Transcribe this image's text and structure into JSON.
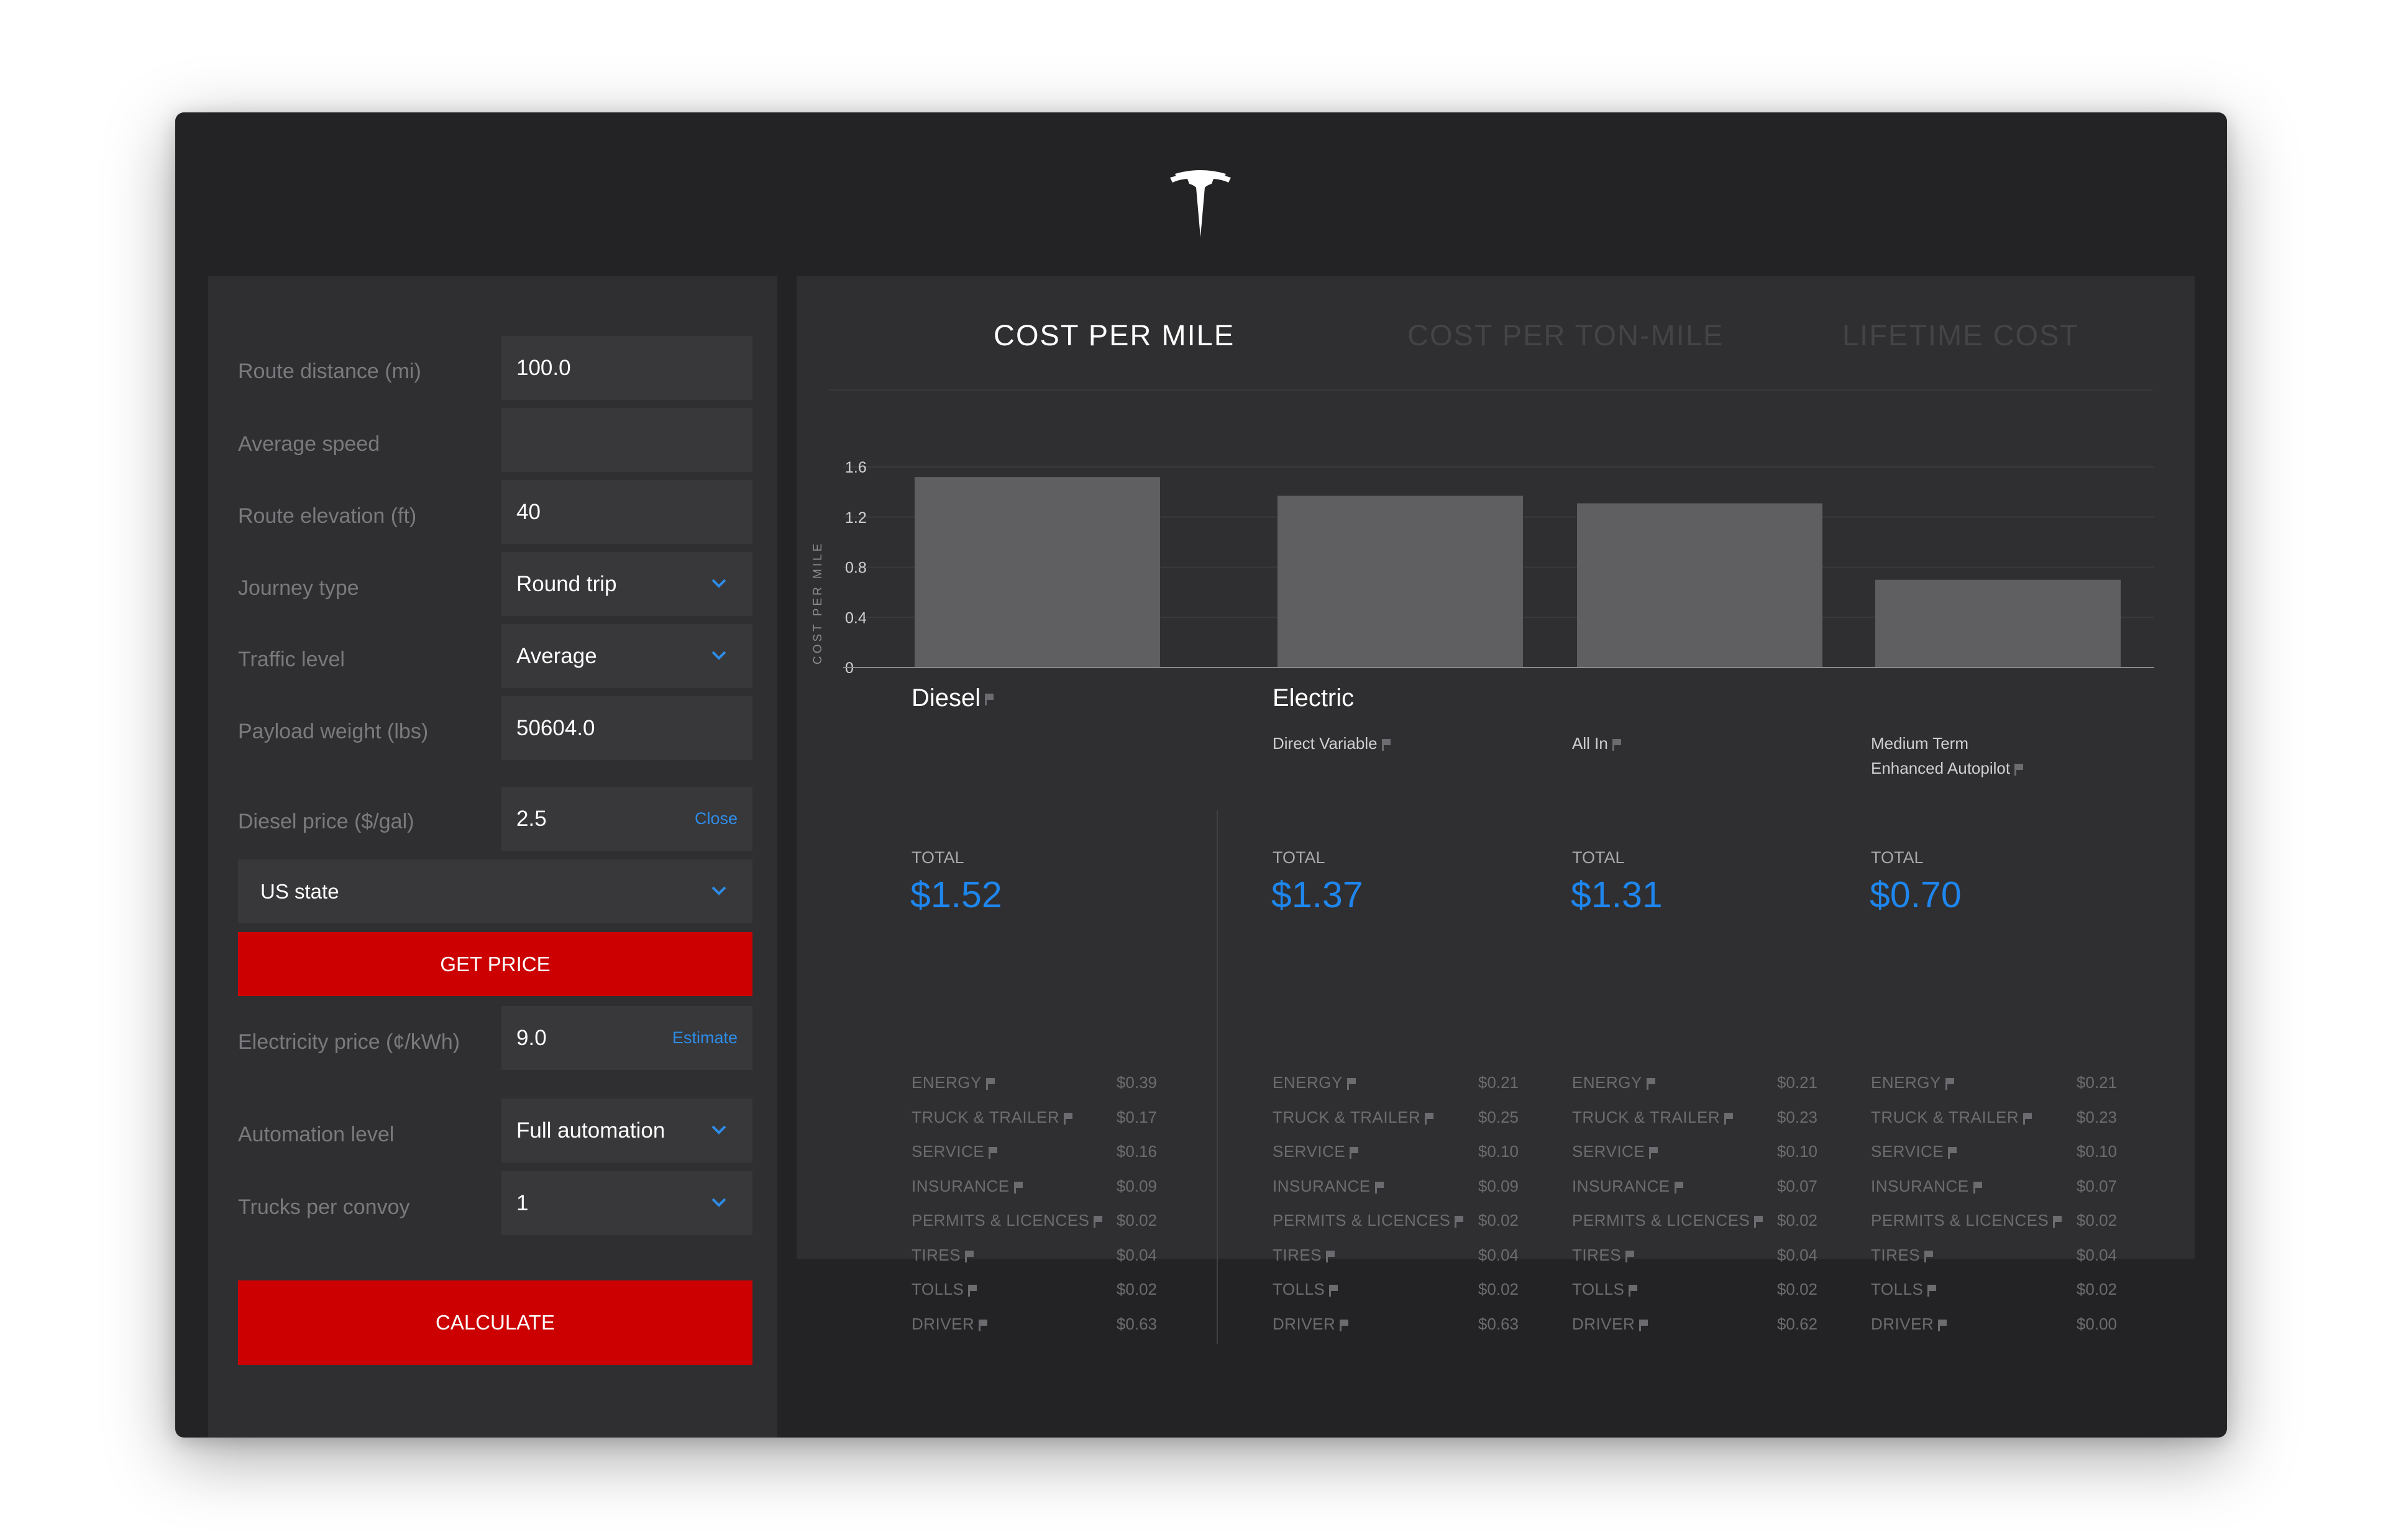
{
  "form": {
    "rows": [
      {
        "label": "Route distance (mi)",
        "value": "100.0",
        "type": "input"
      },
      {
        "label": "Average speed",
        "value": "",
        "type": "input"
      },
      {
        "label": "Route elevation (ft)",
        "value": "40",
        "type": "input"
      },
      {
        "label": "Journey type",
        "value": "Round trip",
        "type": "select"
      },
      {
        "label": "Traffic level",
        "value": "Average",
        "type": "select"
      },
      {
        "label": "Payload weight (lbs)",
        "value": "50604.0",
        "type": "input"
      }
    ],
    "diesel": {
      "label": "Diesel price ($/gal)",
      "value": "2.5",
      "link": "Close"
    },
    "us_state": "US state",
    "get_price": "GET PRICE",
    "electricity": {
      "label": "Electricity price (¢/kWh)",
      "value": "9.0",
      "link": "Estimate"
    },
    "automation": {
      "label": "Automation level",
      "value": "Full automation"
    },
    "convoy": {
      "label": "Trucks per convoy",
      "value": "1"
    },
    "calculate": "CALCULATE"
  },
  "tabs": [
    "COST PER MILE",
    "COST PER TON-MILE",
    "LIFETIME COST"
  ],
  "chart_data": {
    "type": "bar",
    "ylabel": "COST PER MILE",
    "y_ticks": [
      "0",
      "0.4",
      "0.8",
      "1.2",
      "1.6"
    ],
    "ylim": [
      0,
      1.6
    ],
    "categories": [
      "",
      "",
      "",
      ""
    ],
    "values": [
      1.52,
      1.37,
      1.31,
      0.7
    ],
    "grid": true,
    "colors": {
      "bar": "#5f5f62",
      "grid": "#3a3a3d",
      "axis": "#8a8a8e"
    }
  },
  "results": {
    "diesel_title": "Diesel",
    "electric_title": "Electric",
    "total_label": "TOTAL",
    "columns": [
      {
        "sub": [],
        "total": "$1.52",
        "items": [
          [
            "ENERGY",
            "$0.39"
          ],
          [
            "TRUCK & TRAILER",
            "$0.17"
          ],
          [
            "SERVICE",
            "$0.16"
          ],
          [
            "INSURANCE",
            "$0.09"
          ],
          [
            "PERMITS & LICENCES",
            "$0.02"
          ],
          [
            "TIRES",
            "$0.04"
          ],
          [
            "TOLLS",
            "$0.02"
          ],
          [
            "DRIVER",
            "$0.63"
          ]
        ]
      },
      {
        "sub": [
          "Direct Variable"
        ],
        "total": "$1.37",
        "items": [
          [
            "ENERGY",
            "$0.21"
          ],
          [
            "TRUCK & TRAILER",
            "$0.25"
          ],
          [
            "SERVICE",
            "$0.10"
          ],
          [
            "INSURANCE",
            "$0.09"
          ],
          [
            "PERMITS & LICENCES",
            "$0.02"
          ],
          [
            "TIRES",
            "$0.04"
          ],
          [
            "TOLLS",
            "$0.02"
          ],
          [
            "DRIVER",
            "$0.63"
          ]
        ]
      },
      {
        "sub": [
          "All In"
        ],
        "total": "$1.31",
        "items": [
          [
            "ENERGY",
            "$0.21"
          ],
          [
            "TRUCK & TRAILER",
            "$0.23"
          ],
          [
            "SERVICE",
            "$0.10"
          ],
          [
            "INSURANCE",
            "$0.07"
          ],
          [
            "PERMITS & LICENCES",
            "$0.02"
          ],
          [
            "TIRES",
            "$0.04"
          ],
          [
            "TOLLS",
            "$0.02"
          ],
          [
            "DRIVER",
            "$0.62"
          ]
        ]
      },
      {
        "sub": [
          "Medium Term",
          "Enhanced Autopilot"
        ],
        "total": "$0.70",
        "items": [
          [
            "ENERGY",
            "$0.21"
          ],
          [
            "TRUCK & TRAILER",
            "$0.23"
          ],
          [
            "SERVICE",
            "$0.10"
          ],
          [
            "INSURANCE",
            "$0.07"
          ],
          [
            "PERMITS & LICENCES",
            "$0.02"
          ],
          [
            "TIRES",
            "$0.04"
          ],
          [
            "TOLLS",
            "$0.02"
          ],
          [
            "DRIVER",
            "$0.00"
          ]
        ]
      }
    ]
  },
  "colors": {
    "accent_red": "#cc0000",
    "accent_blue": "#1e86ee"
  }
}
